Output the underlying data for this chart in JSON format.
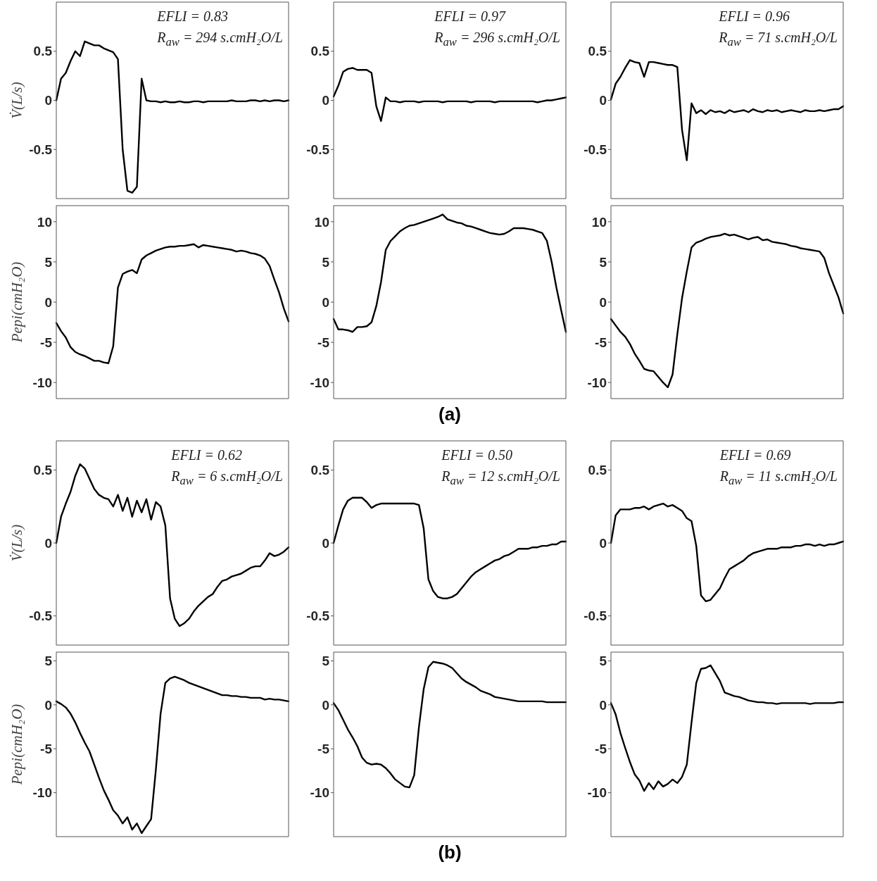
{
  "chart_data": [
    {
      "type": "line",
      "ylabel": "V̇(L/s)",
      "annotations": [
        "EFLI = 0.83",
        "R$_{aw}$ = 294 s.cmH₂O/L"
      ],
      "ylim": [
        -1,
        1
      ],
      "yticks": [
        -0.5,
        0,
        0.5
      ],
      "color": "#000000",
      "categories": [
        null,
        null,
        null,
        null,
        null,
        null,
        null,
        null,
        null,
        null,
        null,
        null,
        null,
        null,
        null,
        null,
        null,
        null,
        null,
        null,
        null,
        null,
        null,
        null,
        null,
        null,
        null,
        null,
        null,
        null,
        null,
        null,
        null,
        null,
        null,
        null,
        null,
        null,
        null,
        null,
        null,
        null,
        null,
        null,
        null,
        null,
        null,
        null,
        null,
        null
      ],
      "values": [
        0,
        0.22,
        0.28,
        0.4,
        0.5,
        0.45,
        0.6,
        0.58,
        0.56,
        0.56,
        0.53,
        0.51,
        0.49,
        0.42,
        -0.5,
        -0.92,
        -0.94,
        -0.88,
        0.22,
        0.0,
        -0.01,
        -0.01,
        -0.02,
        -0.01,
        -0.02,
        -0.02,
        -0.01,
        -0.02,
        -0.02,
        -0.01,
        -0.01,
        -0.02,
        -0.01,
        -0.01,
        -0.01,
        -0.01,
        -0.01,
        0,
        -0.01,
        -0.01,
        -0.01,
        0,
        0,
        -0.01,
        0,
        -0.01,
        0,
        0,
        -0.01,
        0
      ]
    },
    {
      "type": "line",
      "annotations": [
        "EFLI = 0.97",
        "R$_{aw}$ = 296 s.cmH₂O/L"
      ],
      "ylim": [
        -1,
        1
      ],
      "yticks": [
        -0.5,
        0,
        0.5
      ],
      "color": "#000000",
      "categories": [
        null,
        null,
        null,
        null,
        null,
        null,
        null,
        null,
        null,
        null,
        null,
        null,
        null,
        null,
        null,
        null,
        null,
        null,
        null,
        null,
        null,
        null,
        null,
        null,
        null,
        null,
        null,
        null,
        null,
        null,
        null,
        null,
        null,
        null,
        null,
        null,
        null,
        null,
        null,
        null,
        null,
        null,
        null,
        null,
        null,
        null,
        null,
        null,
        null,
        null
      ],
      "values": [
        0.04,
        0.15,
        0.29,
        0.32,
        0.33,
        0.31,
        0.31,
        0.31,
        0.28,
        -0.06,
        -0.21,
        0.03,
        -0.01,
        -0.01,
        -0.02,
        -0.01,
        -0.01,
        -0.01,
        -0.02,
        -0.01,
        -0.01,
        -0.01,
        -0.01,
        -0.02,
        -0.01,
        -0.01,
        -0.01,
        -0.01,
        -0.01,
        -0.02,
        -0.01,
        -0.01,
        -0.01,
        -0.01,
        -0.02,
        -0.01,
        -0.01,
        -0.01,
        -0.01,
        -0.01,
        -0.01,
        -0.01,
        -0.01,
        -0.02,
        -0.01,
        0,
        0,
        0.01,
        0.02,
        0.03
      ]
    },
    {
      "type": "line",
      "annotations": [
        "EFLI = 0.96",
        "R$_{aw}$ = 71 s.cmH₂O/L"
      ],
      "ylim": [
        -1,
        1
      ],
      "yticks": [
        -0.5,
        0,
        0.5
      ],
      "color": "#000000",
      "categories": [
        null,
        null,
        null,
        null,
        null,
        null,
        null,
        null,
        null,
        null,
        null,
        null,
        null,
        null,
        null,
        null,
        null,
        null,
        null,
        null,
        null,
        null,
        null,
        null,
        null,
        null,
        null,
        null,
        null,
        null,
        null,
        null,
        null,
        null,
        null,
        null,
        null,
        null,
        null,
        null,
        null,
        null,
        null,
        null,
        null,
        null,
        null,
        null,
        null,
        null
      ],
      "values": [
        0.01,
        0.17,
        0.24,
        0.33,
        0.41,
        0.39,
        0.38,
        0.24,
        0.39,
        0.39,
        0.38,
        0.37,
        0.36,
        0.36,
        0.34,
        -0.3,
        -0.61,
        -0.03,
        -0.13,
        -0.1,
        -0.14,
        -0.1,
        -0.12,
        -0.11,
        -0.13,
        -0.1,
        -0.12,
        -0.11,
        -0.1,
        -0.12,
        -0.09,
        -0.11,
        -0.12,
        -0.1,
        -0.11,
        -0.1,
        -0.12,
        -0.11,
        -0.1,
        -0.11,
        -0.12,
        -0.1,
        -0.11,
        -0.11,
        -0.1,
        -0.11,
        -0.1,
        -0.09,
        -0.09,
        -0.06
      ]
    },
    {
      "type": "line",
      "ylabel": "Pepi(cmH₂O)",
      "ylim": [
        -12,
        12
      ],
      "yticks": [
        -10,
        -5,
        0,
        5,
        10
      ],
      "color": "#000000",
      "categories": [
        null,
        null,
        null,
        null,
        null,
        null,
        null,
        null,
        null,
        null,
        null,
        null,
        null,
        null,
        null,
        null,
        null,
        null,
        null,
        null,
        null,
        null,
        null,
        null,
        null,
        null,
        null,
        null,
        null,
        null,
        null,
        null,
        null,
        null,
        null,
        null,
        null,
        null,
        null,
        null,
        null,
        null,
        null,
        null,
        null,
        null,
        null,
        null,
        null,
        null
      ],
      "values": [
        -2.6,
        -3.6,
        -4.4,
        -5.6,
        -6.2,
        -6.5,
        -6.7,
        -7.0,
        -7.3,
        -7.3,
        -7.5,
        -7.6,
        -5.5,
        1.8,
        3.5,
        3.8,
        4.0,
        3.6,
        5.3,
        5.8,
        6.1,
        6.4,
        6.6,
        6.8,
        6.9,
        6.9,
        7.0,
        7.0,
        7.1,
        7.2,
        6.8,
        7.1,
        7.0,
        6.9,
        6.8,
        6.7,
        6.6,
        6.5,
        6.3,
        6.4,
        6.3,
        6.1,
        6.0,
        5.8,
        5.4,
        4.5,
        2.8,
        1.2,
        -0.8,
        -2.4
      ]
    },
    {
      "type": "line",
      "annotations": [
        "(a)"
      ],
      "ylim": [
        -12,
        12
      ],
      "yticks": [
        -10,
        -5,
        0,
        5,
        10
      ],
      "color": "#000000",
      "categories": [
        null,
        null,
        null,
        null,
        null,
        null,
        null,
        null,
        null,
        null,
        null,
        null,
        null,
        null,
        null,
        null,
        null,
        null,
        null,
        null,
        null,
        null,
        null,
        null,
        null,
        null,
        null,
        null,
        null,
        null,
        null,
        null,
        null,
        null,
        null,
        null,
        null,
        null,
        null,
        null,
        null,
        null,
        null,
        null,
        null,
        null,
        null,
        null,
        null,
        null
      ],
      "values": [
        -2.1,
        -3.4,
        -3.4,
        -3.5,
        -3.7,
        -3.1,
        -3.1,
        -3.0,
        -2.5,
        -0.5,
        2.5,
        6.5,
        7.6,
        8.2,
        8.8,
        9.2,
        9.5,
        9.6,
        9.8,
        10.0,
        10.2,
        10.4,
        10.6,
        10.9,
        10.3,
        10.1,
        9.9,
        9.8,
        9.5,
        9.4,
        9.2,
        9.0,
        8.8,
        8.6,
        8.5,
        8.4,
        8.5,
        8.8,
        9.2,
        9.2,
        9.2,
        9.1,
        9.0,
        8.8,
        8.6,
        7.6,
        5.0,
        1.8,
        -1.0,
        -3.7
      ]
    },
    {
      "type": "line",
      "ylim": [
        -12,
        12
      ],
      "yticks": [
        -10,
        -5,
        0,
        5,
        10
      ],
      "color": "#000000",
      "categories": [
        null,
        null,
        null,
        null,
        null,
        null,
        null,
        null,
        null,
        null,
        null,
        null,
        null,
        null,
        null,
        null,
        null,
        null,
        null,
        null,
        null,
        null,
        null,
        null,
        null,
        null,
        null,
        null,
        null,
        null,
        null,
        null,
        null,
        null,
        null,
        null,
        null,
        null,
        null,
        null,
        null,
        null,
        null,
        null,
        null,
        null,
        null,
        null,
        null,
        null
      ],
      "values": [
        -2.1,
        -2.9,
        -3.7,
        -4.3,
        -5.2,
        -6.4,
        -7.3,
        -8.3,
        -8.5,
        -8.6,
        -9.3,
        -10.0,
        -10.6,
        -9.0,
        -4.0,
        0.5,
        3.8,
        6.8,
        7.4,
        7.6,
        7.9,
        8.1,
        8.2,
        8.3,
        8.5,
        8.3,
        8.4,
        8.2,
        8.0,
        7.8,
        8.0,
        8.1,
        7.7,
        7.8,
        7.5,
        7.4,
        7.3,
        7.2,
        7.0,
        6.9,
        6.7,
        6.6,
        6.5,
        6.4,
        6.3,
        5.5,
        3.6,
        2.1,
        0.6,
        -1.4
      ]
    },
    {
      "type": "line",
      "ylabel": "V̇(L/s)",
      "annotations": [
        "EFLI = 0.62",
        "R$_{aw}$ = 6 s.cmH₂O/L"
      ],
      "ylim": [
        -0.7,
        0.7
      ],
      "yticks": [
        -0.5,
        0,
        0.5
      ],
      "color": "#000000",
      "categories": [
        null,
        null,
        null,
        null,
        null,
        null,
        null,
        null,
        null,
        null,
        null,
        null,
        null,
        null,
        null,
        null,
        null,
        null,
        null,
        null,
        null,
        null,
        null,
        null,
        null,
        null,
        null,
        null,
        null,
        null,
        null,
        null,
        null,
        null,
        null,
        null,
        null,
        null,
        null,
        null,
        null,
        null,
        null,
        null,
        null,
        null,
        null,
        null,
        null,
        null
      ],
      "values": [
        0,
        0.18,
        0.27,
        0.35,
        0.46,
        0.54,
        0.51,
        0.44,
        0.37,
        0.33,
        0.31,
        0.3,
        0.25,
        0.33,
        0.22,
        0.31,
        0.18,
        0.29,
        0.21,
        0.3,
        0.16,
        0.28,
        0.25,
        0.12,
        -0.38,
        -0.52,
        -0.57,
        -0.55,
        -0.52,
        -0.47,
        -0.43,
        -0.4,
        -0.37,
        -0.35,
        -0.3,
        -0.26,
        -0.25,
        -0.23,
        -0.22,
        -0.21,
        -0.19,
        -0.17,
        -0.16,
        -0.16,
        -0.12,
        -0.07,
        -0.09,
        -0.08,
        -0.06,
        -0.03
      ]
    },
    {
      "type": "line",
      "annotations": [
        "EFLI = 0.50",
        "R$_{aw}$ = 12 s.cmH₂O/L"
      ],
      "ylim": [
        -0.7,
        0.7
      ],
      "yticks": [
        -0.5,
        0,
        0.5
      ],
      "color": "#000000",
      "categories": [
        null,
        null,
        null,
        null,
        null,
        null,
        null,
        null,
        null,
        null,
        null,
        null,
        null,
        null,
        null,
        null,
        null,
        null,
        null,
        null,
        null,
        null,
        null,
        null,
        null,
        null,
        null,
        null,
        null,
        null,
        null,
        null,
        null,
        null,
        null,
        null,
        null,
        null,
        null,
        null,
        null,
        null,
        null,
        null,
        null,
        null,
        null,
        null,
        null,
        null
      ],
      "values": [
        0,
        0.12,
        0.23,
        0.29,
        0.31,
        0.31,
        0.31,
        0.28,
        0.24,
        0.26,
        0.27,
        0.27,
        0.27,
        0.27,
        0.27,
        0.27,
        0.27,
        0.27,
        0.26,
        0.1,
        -0.25,
        -0.33,
        -0.37,
        -0.38,
        -0.38,
        -0.37,
        -0.35,
        -0.31,
        -0.27,
        -0.23,
        -0.2,
        -0.18,
        -0.16,
        -0.14,
        -0.12,
        -0.11,
        -0.09,
        -0.08,
        -0.06,
        -0.04,
        -0.04,
        -0.04,
        -0.03,
        -0.03,
        -0.02,
        -0.02,
        -0.01,
        -0.01,
        0.01,
        0.01
      ]
    },
    {
      "type": "line",
      "annotations": [
        "EFLI = 0.69",
        "R$_{aw}$ = 11 s.cmH₂O/L"
      ],
      "ylim": [
        -0.7,
        0.7
      ],
      "yticks": [
        -0.5,
        0,
        0.5
      ],
      "color": "#000000",
      "categories": [
        null,
        null,
        null,
        null,
        null,
        null,
        null,
        null,
        null,
        null,
        null,
        null,
        null,
        null,
        null,
        null,
        null,
        null,
        null,
        null,
        null,
        null,
        null,
        null,
        null,
        null,
        null,
        null,
        null,
        null,
        null,
        null,
        null,
        null,
        null,
        null,
        null,
        null,
        null,
        null,
        null,
        null,
        null,
        null,
        null,
        null,
        null,
        null,
        null,
        null
      ],
      "values": [
        0,
        0.19,
        0.23,
        0.23,
        0.23,
        0.24,
        0.24,
        0.25,
        0.23,
        0.25,
        0.26,
        0.27,
        0.25,
        0.26,
        0.24,
        0.22,
        0.17,
        0.15,
        -0.02,
        -0.36,
        -0.4,
        -0.39,
        -0.35,
        -0.31,
        -0.24,
        -0.18,
        -0.16,
        -0.14,
        -0.12,
        -0.09,
        -0.07,
        -0.06,
        -0.05,
        -0.04,
        -0.04,
        -0.04,
        -0.03,
        -0.03,
        -0.03,
        -0.02,
        -0.02,
        -0.01,
        -0.01,
        -0.02,
        -0.01,
        -0.02,
        -0.01,
        -0.01,
        0.0,
        0.01
      ]
    },
    {
      "type": "line",
      "ylabel": "Pepi(cmH₂O)",
      "ylim": [
        -15,
        6
      ],
      "yticks": [
        -10,
        -5,
        0,
        5
      ],
      "color": "#000000",
      "categories": [
        null,
        null,
        null,
        null,
        null,
        null,
        null,
        null,
        null,
        null,
        null,
        null,
        null,
        null,
        null,
        null,
        null,
        null,
        null,
        null,
        null,
        null,
        null,
        null,
        null,
        null,
        null,
        null,
        null,
        null,
        null,
        null,
        null,
        null,
        null,
        null,
        null,
        null,
        null,
        null,
        null,
        null,
        null,
        null,
        null,
        null,
        null,
        null,
        null,
        null
      ],
      "values": [
        0.4,
        0.1,
        -0.3,
        -1.0,
        -2.0,
        -3.2,
        -4.3,
        -5.3,
        -6.8,
        -8.3,
        -9.7,
        -10.8,
        -12.0,
        -12.6,
        -13.5,
        -12.8,
        -14.2,
        -13.5,
        -14.6,
        -13.8,
        -13.0,
        -7.4,
        -1.0,
        2.5,
        3.0,
        3.2,
        3.0,
        2.8,
        2.5,
        2.3,
        2.1,
        1.9,
        1.7,
        1.5,
        1.3,
        1.1,
        1.1,
        1.0,
        1.0,
        0.9,
        0.9,
        0.8,
        0.8,
        0.8,
        0.6,
        0.7,
        0.6,
        0.6,
        0.5,
        0.4
      ]
    },
    {
      "type": "line",
      "annotations": [
        "(b)"
      ],
      "ylim": [
        -15,
        6
      ],
      "yticks": [
        -10,
        -5,
        0,
        5
      ],
      "color": "#000000",
      "categories": [
        null,
        null,
        null,
        null,
        null,
        null,
        null,
        null,
        null,
        null,
        null,
        null,
        null,
        null,
        null,
        null,
        null,
        null,
        null,
        null,
        null,
        null,
        null,
        null,
        null,
        null,
        null,
        null,
        null,
        null,
        null,
        null,
        null,
        null,
        null,
        null,
        null,
        null,
        null,
        null,
        null,
        null,
        null,
        null,
        null,
        null,
        null,
        null,
        null,
        null
      ],
      "values": [
        0.2,
        -0.6,
        -1.7,
        -2.8,
        -3.7,
        -4.7,
        -6.0,
        -6.6,
        -6.8,
        -6.7,
        -6.8,
        -7.2,
        -7.8,
        -8.5,
        -8.9,
        -9.3,
        -9.4,
        -8.0,
        -2.5,
        1.8,
        4.3,
        4.9,
        4.8,
        4.7,
        4.5,
        4.2,
        3.6,
        3.0,
        2.6,
        2.3,
        2.0,
        1.6,
        1.4,
        1.2,
        0.9,
        0.8,
        0.7,
        0.6,
        0.5,
        0.4,
        0.4,
        0.4,
        0.4,
        0.4,
        0.4,
        0.3,
        0.3,
        0.3,
        0.3,
        0.3
      ]
    },
    {
      "type": "line",
      "ylim": [
        -15,
        6
      ],
      "yticks": [
        -10,
        -5,
        0,
        5
      ],
      "color": "#000000",
      "categories": [
        null,
        null,
        null,
        null,
        null,
        null,
        null,
        null,
        null,
        null,
        null,
        null,
        null,
        null,
        null,
        null,
        null,
        null,
        null,
        null,
        null,
        null,
        null,
        null,
        null,
        null,
        null,
        null,
        null,
        null,
        null,
        null,
        null,
        null,
        null,
        null,
        null,
        null,
        null,
        null,
        null,
        null,
        null,
        null,
        null,
        null,
        null,
        null,
        null,
        null
      ],
      "values": [
        0.2,
        -1.1,
        -3.2,
        -4.9,
        -6.5,
        -7.9,
        -8.6,
        -9.8,
        -8.9,
        -9.6,
        -8.7,
        -9.3,
        -9.0,
        -8.5,
        -8.9,
        -8.2,
        -6.8,
        -2.0,
        2.5,
        4.1,
        4.2,
        4.5,
        3.6,
        2.7,
        1.4,
        1.2,
        1.0,
        0.9,
        0.7,
        0.5,
        0.4,
        0.3,
        0.3,
        0.2,
        0.2,
        0.1,
        0.2,
        0.2,
        0.2,
        0.2,
        0.2,
        0.2,
        0.1,
        0.2,
        0.2,
        0.2,
        0.2,
        0.2,
        0.3,
        0.3
      ]
    }
  ]
}
